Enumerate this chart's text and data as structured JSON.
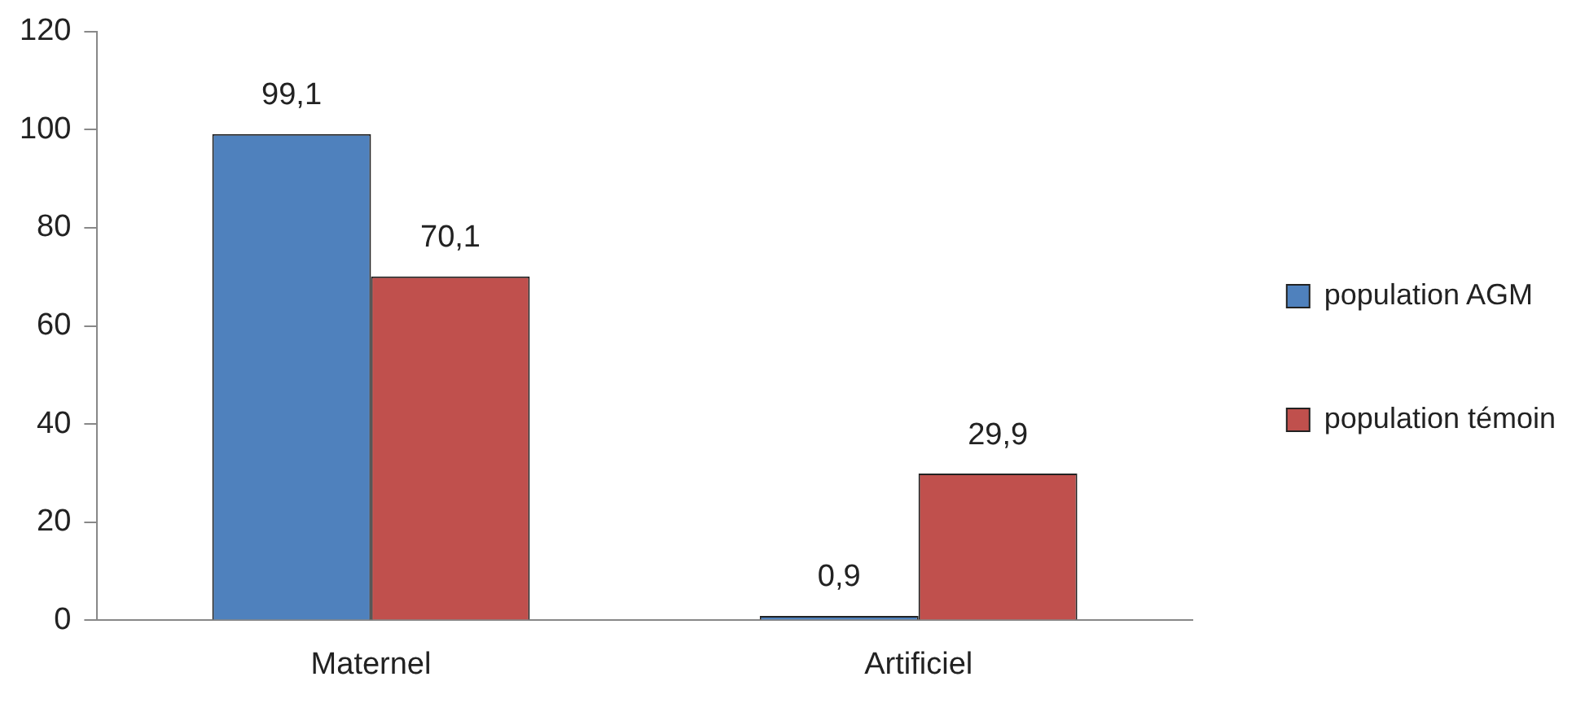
{
  "chart_data": {
    "type": "bar",
    "categories": [
      "Maternel",
      "Artificiel"
    ],
    "series": [
      {
        "name": "population AGM",
        "color": "#4f81bd",
        "values": [
          99.1,
          0.9
        ],
        "value_labels": [
          "99,1",
          "0,9"
        ]
      },
      {
        "name": "population témoin",
        "color": "#c0504d",
        "values": [
          70.1,
          29.9
        ],
        "value_labels": [
          "70,1",
          "29,9"
        ]
      }
    ],
    "ylim": [
      0,
      120
    ],
    "yticks": [
      0,
      20,
      40,
      60,
      80,
      100,
      120
    ],
    "grid": false,
    "legend": "right"
  }
}
